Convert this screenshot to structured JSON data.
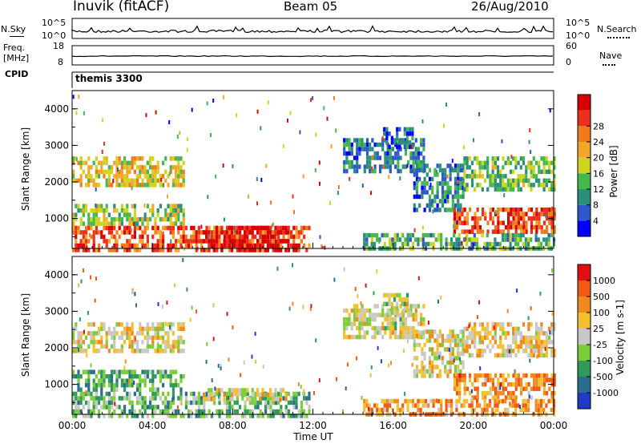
{
  "header": {
    "station": "Inuvik (fitACF)",
    "beam": "Beam 05",
    "date": "26/Aug/2010"
  },
  "top_panels": {
    "nsky_label": "N.Sky",
    "nsky_ticks": [
      "10^5",
      "10^0"
    ],
    "nsearch_label": "N.Search",
    "nsearch_ticks": [
      "10^5",
      "10^0"
    ],
    "freq_label": "Freq.",
    "freq_unit": "[MHz]",
    "freq_ticks": [
      "18",
      "8"
    ],
    "nave_label": "Nave",
    "nave_ticks": [
      "60",
      "0"
    ],
    "cpid_label": "CPID",
    "cpid_value": "themis 3300"
  },
  "chart_data": [
    {
      "type": "heatmap",
      "name": "power",
      "ylabel": "Slant Range [km]",
      "ylim": [
        180,
        4500
      ],
      "yticks": [
        "1000",
        "2000",
        "3000",
        "4000"
      ],
      "xlim": [
        "00:00",
        "24:00"
      ],
      "colorbar": {
        "label": "Power [dB]",
        "ticks": [
          "4",
          "8",
          "12",
          "16",
          "20",
          "24",
          "28"
        ],
        "colors": [
          "#0000ff",
          "#2e57c8",
          "#2b8f7a",
          "#44b84c",
          "#cfd41e",
          "#f4a628",
          "#f07a1c",
          "#e8301c",
          "#d80000"
        ]
      },
      "regions": [
        {
          "t0": 0.0,
          "t1": 11.8,
          "r0": 180,
          "r1": 800,
          "level": 0.78
        },
        {
          "t0": 6.5,
          "t1": 10.8,
          "r0": 180,
          "r1": 800,
          "level": 0.95
        },
        {
          "t0": 0.0,
          "t1": 5.5,
          "r0": 800,
          "r1": 1400,
          "level": 0.45
        },
        {
          "t0": 0.0,
          "t1": 5.5,
          "r0": 1900,
          "r1": 2700,
          "level": 0.55
        },
        {
          "t0": 13.5,
          "t1": 17.5,
          "r0": 2300,
          "r1": 3200,
          "level": 0.25
        },
        {
          "t0": 15.5,
          "t1": 17.0,
          "r0": 3000,
          "r1": 3500,
          "level": 0.2
        },
        {
          "t0": 17.0,
          "t1": 19.5,
          "r0": 1200,
          "r1": 2500,
          "level": 0.25
        },
        {
          "t0": 19.5,
          "t1": 24.0,
          "r0": 1800,
          "r1": 2700,
          "level": 0.4
        },
        {
          "t0": 19.0,
          "t1": 24.0,
          "r0": 600,
          "r1": 1300,
          "level": 0.82
        },
        {
          "t0": 14.5,
          "t1": 24.0,
          "r0": 180,
          "r1": 600,
          "level": 0.35
        }
      ]
    },
    {
      "type": "heatmap",
      "name": "velocity",
      "ylabel": "Slant Range [km]",
      "xlabel": "Time UT",
      "ylim": [
        180,
        4500
      ],
      "yticks": [
        "1000",
        "2000",
        "3000",
        "4000"
      ],
      "xticks": [
        "00:00",
        "04:00",
        "08:00",
        "12:00",
        "16:00",
        "20:00",
        "00:00"
      ],
      "colorbar": {
        "label": "Velocity [m s-1]",
        "ticks": [
          "1000",
          "500",
          "100",
          "25",
          "-25",
          "-100",
          "-500",
          "-1000"
        ],
        "colors": [
          "#1e3cc8",
          "#2a6e8c",
          "#2f9a5a",
          "#7ccd3c",
          "#c8c8c8",
          "#f0c030",
          "#f08a20",
          "#f05a14",
          "#e01010"
        ]
      },
      "regions": [
        {
          "t0": 0.0,
          "t1": 11.8,
          "r0": 180,
          "r1": 800,
          "level": 0.35
        },
        {
          "t0": 6.5,
          "t1": 10.8,
          "r0": 600,
          "r1": 900,
          "level": 0.55
        },
        {
          "t0": 0.0,
          "t1": 5.5,
          "r0": 800,
          "r1": 1400,
          "level": 0.3
        },
        {
          "t0": 0.0,
          "t1": 5.5,
          "r0": 1900,
          "r1": 2700,
          "level": 0.55
        },
        {
          "t0": 13.5,
          "t1": 17.5,
          "r0": 2300,
          "r1": 3200,
          "level": 0.5
        },
        {
          "t0": 15.5,
          "t1": 17.0,
          "r0": 3000,
          "r1": 3500,
          "level": 0.5
        },
        {
          "t0": 17.0,
          "t1": 19.5,
          "r0": 1200,
          "r1": 2500,
          "level": 0.55
        },
        {
          "t0": 19.5,
          "t1": 24.0,
          "r0": 1800,
          "r1": 2700,
          "level": 0.6
        },
        {
          "t0": 19.0,
          "t1": 24.0,
          "r0": 600,
          "r1": 1300,
          "level": 0.72
        },
        {
          "t0": 14.5,
          "t1": 24.0,
          "r0": 180,
          "r1": 600,
          "level": 0.7
        }
      ]
    }
  ]
}
